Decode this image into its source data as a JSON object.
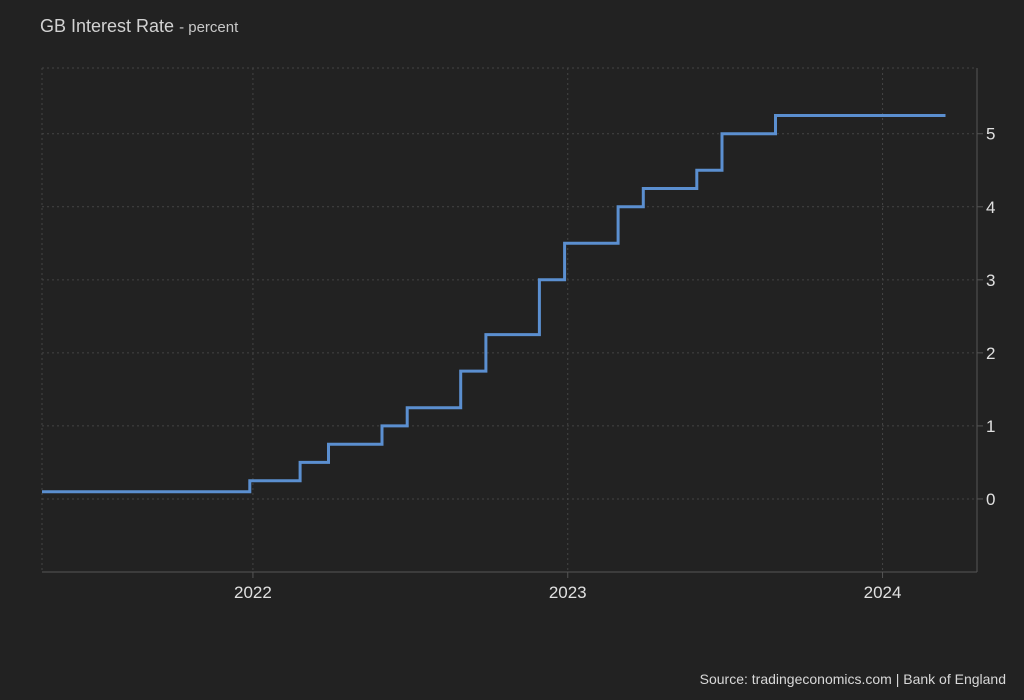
{
  "header": {
    "title": "GB Interest Rate",
    "unit": "percent"
  },
  "footer": {
    "source": "Source: tradingeconomics.com | Bank of England"
  },
  "colors": {
    "background": "#222222",
    "grid": "#444444",
    "axis": "#555555",
    "line": "#5b8fd0"
  },
  "chart_data": {
    "type": "line",
    "step": true,
    "title": "GB Interest Rate - percent",
    "xlabel": "",
    "ylabel": "",
    "xlim": [
      2021.33,
      2024.3
    ],
    "ylim": [
      -1,
      5.9
    ],
    "y_ticks": [
      0,
      1,
      2,
      3,
      4,
      5
    ],
    "x_ticks": [
      2022,
      2023,
      2024
    ],
    "grid": true,
    "y_axis_side": "right",
    "series": [
      {
        "points": [
          {
            "x": 2021.33,
            "y": 0.1
          },
          {
            "x": 2021.99,
            "y": 0.25
          },
          {
            "x": 2022.15,
            "y": 0.5
          },
          {
            "x": 2022.24,
            "y": 0.75
          },
          {
            "x": 2022.41,
            "y": 1.0
          },
          {
            "x": 2022.49,
            "y": 1.25
          },
          {
            "x": 2022.66,
            "y": 1.75
          },
          {
            "x": 2022.74,
            "y": 2.25
          },
          {
            "x": 2022.91,
            "y": 3.0
          },
          {
            "x": 2022.99,
            "y": 3.5
          },
          {
            "x": 2023.16,
            "y": 4.0
          },
          {
            "x": 2023.24,
            "y": 4.25
          },
          {
            "x": 2023.41,
            "y": 4.5
          },
          {
            "x": 2023.49,
            "y": 5.0
          },
          {
            "x": 2023.66,
            "y": 5.25
          },
          {
            "x": 2024.2,
            "y": 5.25
          }
        ]
      }
    ]
  }
}
